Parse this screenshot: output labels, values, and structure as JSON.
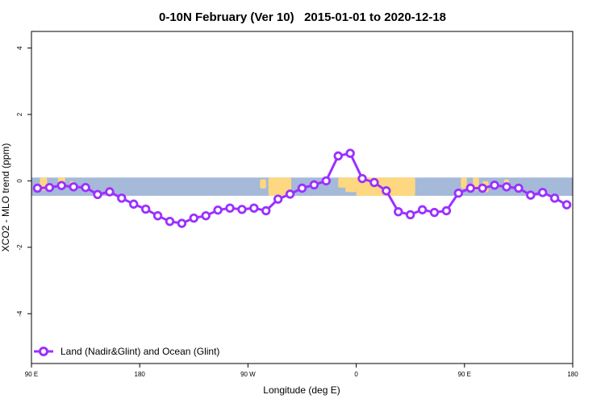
{
  "chart_data": {
    "type": "line",
    "title": "0-10N February (Ver 10)   2015-01-01 to 2020-12-18",
    "xlabel": "Longitude (deg E)",
    "ylabel": "XCO2 - MLO trend (ppm)",
    "xlim": [
      90,
      540
    ],
    "ylim": [
      -5.5,
      4.5
    ],
    "x_ticks": [
      {
        "value": 90,
        "label": "90 E"
      },
      {
        "value": 180,
        "label": "180"
      },
      {
        "value": 270,
        "label": "90 W"
      },
      {
        "value": 360,
        "label": "0"
      },
      {
        "value": 450,
        "label": "90 E"
      },
      {
        "value": 540,
        "label": "180"
      }
    ],
    "y_ticks": [
      {
        "value": 4,
        "label": "4"
      },
      {
        "value": 2,
        "label": "2"
      },
      {
        "value": 0,
        "label": "0"
      },
      {
        "value": -2,
        "label": "-2"
      },
      {
        "value": -4,
        "label": "-4"
      }
    ],
    "grid": false,
    "legend_position": "bottom-left",
    "background_map": {
      "lat_band": "0-10N",
      "y_range": [
        -0.45,
        0.1
      ],
      "ocean_color": "#a5b9d8",
      "land_color": "#fdd880"
    },
    "series": [
      {
        "name": "Land (Nadir&Glint) and Ocean (Glint)",
        "color": "#9b30ff",
        "x": [
          95,
          105,
          115,
          125,
          135,
          145,
          155,
          165,
          175,
          185,
          195,
          205,
          215,
          225,
          235,
          245,
          255,
          265,
          275,
          285,
          295,
          305,
          315,
          325,
          335,
          345,
          355,
          365,
          375,
          385,
          395,
          405,
          415,
          425,
          435,
          445,
          455,
          465,
          475,
          485,
          495,
          505,
          515,
          525,
          535
        ],
        "values": [
          -0.22,
          -0.2,
          -0.14,
          -0.18,
          -0.2,
          -0.41,
          -0.33,
          -0.52,
          -0.7,
          -0.85,
          -1.05,
          -1.22,
          -1.28,
          -1.12,
          -1.05,
          -0.88,
          -0.82,
          -0.86,
          -0.82,
          -0.9,
          -0.55,
          -0.4,
          -0.22,
          -0.12,
          0.0,
          0.75,
          0.83,
          0.07,
          -0.05,
          -0.3,
          -0.93,
          -1.02,
          -0.87,
          -0.95,
          -0.9,
          -0.37,
          -0.22,
          -0.22,
          -0.13,
          -0.18,
          -0.22,
          -0.43,
          -0.35,
          -0.52,
          -0.72
        ]
      }
    ]
  }
}
